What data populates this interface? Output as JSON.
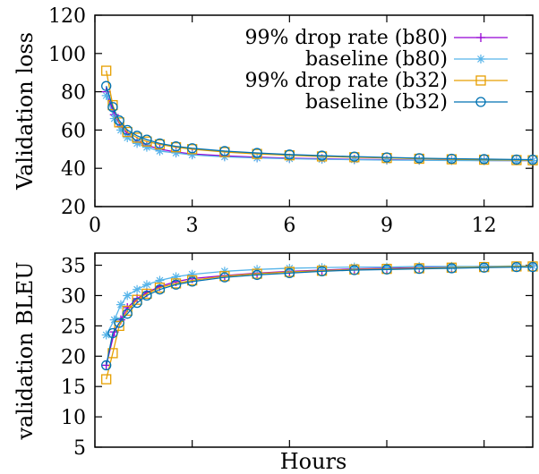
{
  "chart_data": [
    {
      "type": "line",
      "title": "",
      "xlabel": "",
      "ylabel": "Validation loss",
      "xlim": [
        0,
        13.5
      ],
      "ylim": [
        20,
        120
      ],
      "xticks": [
        0,
        3,
        6,
        9,
        12
      ],
      "yticks": [
        20,
        40,
        60,
        80,
        100,
        120
      ],
      "legend": "top-right",
      "grid": false,
      "series": [
        {
          "name": "99% drop rate (b80)",
          "color": "#9400d3",
          "marker": "plus",
          "x": [
            0.35,
            0.6,
            0.8,
            1.0,
            1.3,
            1.6,
            2.0,
            2.5,
            3.0,
            4.0,
            5.0,
            6.0,
            7.0,
            8.0,
            9.0,
            10.0,
            11.0,
            12.0,
            13.0,
            13.5
          ],
          "y": [
            80,
            68,
            62,
            58,
            54,
            52,
            50,
            48.5,
            47.5,
            46.5,
            45.8,
            45.3,
            45.0,
            44.7,
            44.5,
            44.3,
            44.2,
            44.1,
            44.0,
            44.0
          ]
        },
        {
          "name": "baseline (b80)",
          "color": "#56b4e9",
          "marker": "star",
          "x": [
            0.35,
            0.6,
            0.8,
            1.0,
            1.3,
            1.6,
            2.0,
            2.5,
            3.0,
            4.0,
            5.0,
            6.0,
            7.0,
            8.0,
            9.0,
            10.0,
            11.0,
            12.0,
            13.0,
            13.5
          ],
          "y": [
            78,
            66,
            60,
            56,
            53,
            51,
            49,
            48,
            47,
            46,
            45.4,
            45.0,
            44.7,
            44.5,
            44.3,
            44.2,
            44.1,
            44.0,
            44.0,
            44.0
          ]
        },
        {
          "name": "99% drop rate (b32)",
          "color": "#e69f00",
          "marker": "square",
          "x": [
            0.35,
            0.55,
            0.75,
            1.0,
            1.3,
            1.6,
            2.0,
            2.5,
            3.0,
            4.0,
            5.0,
            6.0,
            7.0,
            8.0,
            9.0,
            10.0,
            11.0,
            12.0,
            13.0,
            13.5
          ],
          "y": [
            91,
            73,
            64,
            59,
            56,
            54,
            52.5,
            51,
            50,
            48.5,
            47.5,
            46.8,
            46.2,
            45.8,
            45.4,
            45.0,
            44.7,
            44.5,
            44.3,
            44.2
          ]
        },
        {
          "name": "baseline (b32)",
          "color": "#0072b2",
          "marker": "circle",
          "x": [
            0.35,
            0.55,
            0.75,
            1.0,
            1.3,
            1.6,
            2.0,
            2.5,
            3.0,
            4.0,
            5.0,
            6.0,
            7.0,
            8.0,
            9.0,
            10.0,
            11.0,
            12.0,
            13.0,
            13.5
          ],
          "y": [
            83,
            72,
            65,
            60,
            57,
            55,
            53,
            51.5,
            50.5,
            49,
            48,
            47.2,
            46.6,
            46.1,
            45.7,
            45.3,
            45.0,
            44.8,
            44.6,
            44.5
          ]
        }
      ]
    },
    {
      "type": "line",
      "title": "",
      "xlabel": "Hours",
      "ylabel": "validation BLEU",
      "xlim": [
        0,
        13.5
      ],
      "ylim": [
        5,
        37
      ],
      "yticks": [
        5,
        10,
        15,
        20,
        25,
        30,
        35
      ],
      "legend": "none",
      "grid": false,
      "series": [
        {
          "name": "99% drop rate (b80)",
          "color": "#9400d3",
          "marker": "plus",
          "x": [
            0.35,
            0.6,
            0.8,
            1.0,
            1.3,
            1.6,
            2.0,
            2.5,
            3.0,
            4.0,
            5.0,
            6.0,
            7.0,
            8.0,
            9.0,
            10.0,
            11.0,
            12.0,
            13.0,
            13.5
          ],
          "y": [
            18.5,
            24,
            26,
            28,
            29.5,
            30.5,
            31.5,
            32.3,
            32.8,
            33.3,
            33.7,
            34.0,
            34.2,
            34.4,
            34.5,
            34.6,
            34.7,
            34.8,
            34.8,
            34.9
          ]
        },
        {
          "name": "baseline (b80)",
          "color": "#56b4e9",
          "marker": "star",
          "x": [
            0.35,
            0.6,
            0.8,
            1.0,
            1.3,
            1.6,
            2.0,
            2.5,
            3.0,
            4.0,
            5.0,
            6.0,
            7.0,
            8.0,
            9.0,
            10.0,
            11.0,
            12.0,
            13.0,
            13.5
          ],
          "y": [
            23.5,
            26,
            28.5,
            30,
            31,
            31.8,
            32.5,
            33.1,
            33.5,
            34.0,
            34.3,
            34.5,
            34.6,
            34.7,
            34.7,
            34.8,
            34.8,
            34.8,
            34.9,
            34.9
          ]
        },
        {
          "name": "99% drop rate (b32)",
          "color": "#e69f00",
          "marker": "square",
          "x": [
            0.35,
            0.55,
            0.75,
            1.0,
            1.3,
            1.6,
            2.0,
            2.5,
            3.0,
            4.0,
            5.0,
            6.0,
            7.0,
            8.0,
            9.0,
            10.0,
            11.0,
            12.0,
            13.0,
            13.5
          ],
          "y": [
            16.2,
            20.5,
            25,
            27.5,
            29.3,
            30.3,
            31.3,
            32.0,
            32.5,
            33.2,
            33.6,
            33.9,
            34.1,
            34.3,
            34.4,
            34.5,
            34.6,
            34.7,
            34.8,
            34.8
          ]
        },
        {
          "name": "baseline (b32)",
          "color": "#0072b2",
          "marker": "circle",
          "x": [
            0.35,
            0.55,
            0.75,
            1.0,
            1.3,
            1.6,
            2.0,
            2.5,
            3.0,
            4.0,
            5.0,
            6.0,
            7.0,
            8.0,
            9.0,
            10.0,
            11.0,
            12.0,
            13.0,
            13.5
          ],
          "y": [
            18.5,
            23.8,
            25.5,
            27,
            28.8,
            30,
            31.0,
            31.8,
            32.3,
            33.0,
            33.4,
            33.7,
            34.0,
            34.2,
            34.3,
            34.4,
            34.5,
            34.6,
            34.7,
            34.7
          ]
        }
      ]
    }
  ]
}
